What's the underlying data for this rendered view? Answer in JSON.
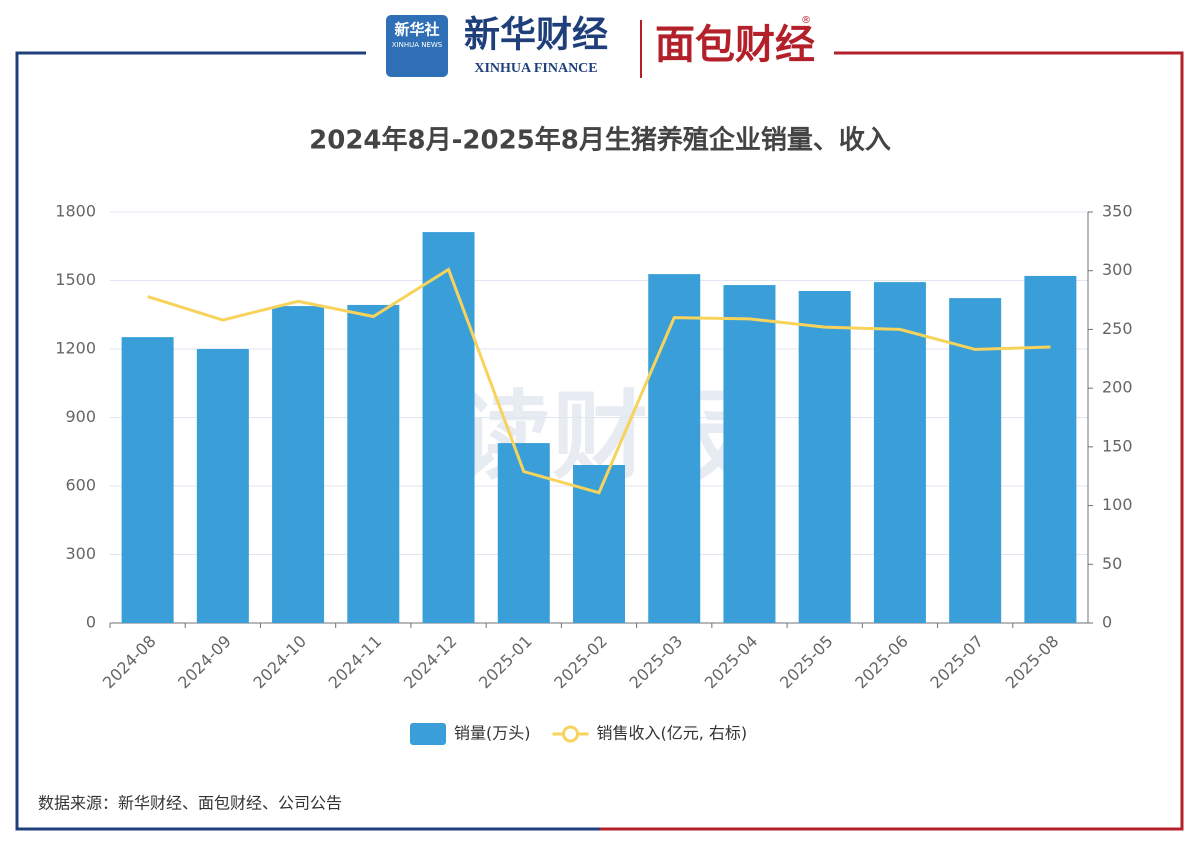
{
  "header": {
    "xinhua_logo": "新华社",
    "xinhua_logo_en": "XINHUA NEWS",
    "brand": "新华财经",
    "brand_en": "XINHUA FINANCE",
    "partner": "面包财经",
    "partner_mark": "®"
  },
  "watermark": "读财报",
  "source": "数据来源：新华财经、面包财经、公司公告",
  "chart_data": {
    "type": "bar",
    "title": "2024年8月-2025年8月生猪养殖企业销量、收入",
    "categories": [
      "2024-08",
      "2024-09",
      "2024-10",
      "2024-11",
      "2024-12",
      "2025-01",
      "2025-02",
      "2025-03",
      "2025-04",
      "2025-05",
      "2025-06",
      "2025-07",
      "2025-08"
    ],
    "series": [
      {
        "name": "销量(万头)",
        "type": "bar",
        "color": "#3a9fd8",
        "values": [
          1252,
          1200,
          1388,
          1393,
          1712,
          788,
          692,
          1528,
          1480,
          1454,
          1493,
          1423,
          1520
        ]
      },
      {
        "name": "销售收入(亿元, 右标)",
        "type": "line",
        "axis": "y2",
        "color": "#f7d35c",
        "values": [
          278,
          258,
          274,
          261,
          301,
          129,
          111,
          260,
          259,
          252,
          250,
          233,
          235
        ]
      }
    ],
    "ylim": [
      0,
      1800
    ],
    "yticks": [
      0,
      300,
      600,
      900,
      1200,
      1500,
      1800
    ],
    "y2lim": [
      0,
      350
    ],
    "y2ticks": [
      0,
      50,
      100,
      150,
      200,
      250,
      300,
      350
    ],
    "grid": true,
    "legend": "bottom"
  }
}
